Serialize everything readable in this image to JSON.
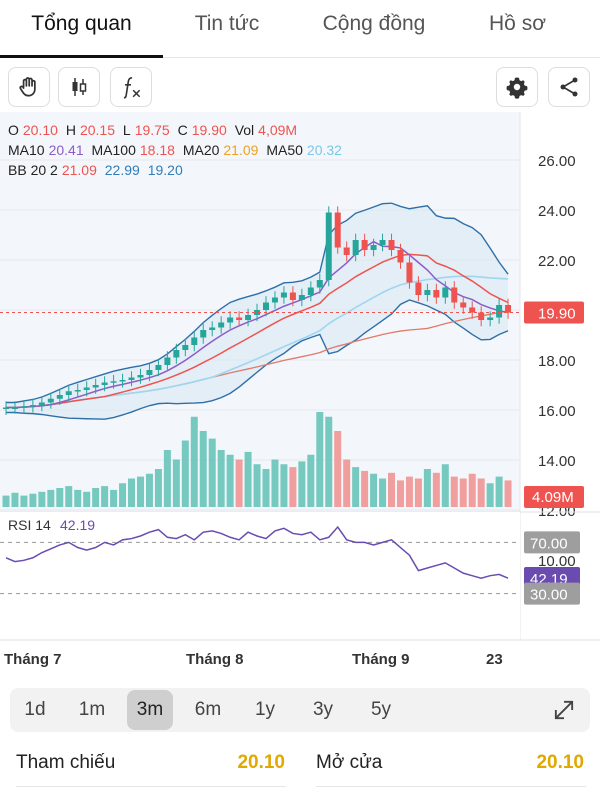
{
  "tabs": [
    "Tổng quan",
    "Tin tức",
    "Cộng đồng",
    "Hồ sơ"
  ],
  "legend": {
    "ohlc": {
      "o_label": "O",
      "o": "20.10",
      "h_label": "H",
      "h": "20.15",
      "l_label": "L",
      "l": "19.75",
      "c_label": "C",
      "c": "19.90",
      "vol_label": "Vol",
      "vol": "4,09M"
    },
    "ma": {
      "ma10_label": "MA10",
      "ma10": "20.41",
      "ma100_label": "MA100",
      "ma100": "18.18",
      "ma20_label": "MA20",
      "ma20": "21.09",
      "ma50_label": "MA50",
      "ma50": "20.32"
    },
    "bb": {
      "label": "BB 20 2",
      "mid": "21.09",
      "upper": "22.99",
      "lower": "19.20"
    }
  },
  "price_axis": [
    "26.00",
    "24.00",
    "22.00",
    "20.00",
    "18.00",
    "16.00",
    "14.00",
    "12.00",
    "10.00"
  ],
  "price_badge": "19.90",
  "volume_badge": "4.09M",
  "rsi": {
    "label": "RSI 14",
    "value": "42.19",
    "level_upper": "70.00",
    "level_lower": "30.00"
  },
  "x_axis": [
    "Tháng 7",
    "Tháng 8",
    "Tháng 9",
    "23"
  ],
  "periods": [
    "1d",
    "1m",
    "3m",
    "6m",
    "1y",
    "3y",
    "5y"
  ],
  "active_period": "3m",
  "stats": {
    "ref_label": "Tham chiếu",
    "ref_value": "20.10",
    "open_label": "Mở cửa",
    "open_value": "20.10"
  },
  "colors": {
    "up": "#26a69a",
    "down": "#ef5350",
    "ref": "#e0a800"
  },
  "chart_data": {
    "type": "candlestick",
    "price_range": [
      10,
      27
    ],
    "closes": [
      16.1,
      16.1,
      16.15,
      16.2,
      16.3,
      16.45,
      16.6,
      16.75,
      16.8,
      16.9,
      17.0,
      17.1,
      17.15,
      17.2,
      17.3,
      17.4,
      17.6,
      17.8,
      18.1,
      18.4,
      18.6,
      18.9,
      19.2,
      19.3,
      19.5,
      19.7,
      19.6,
      19.8,
      20.0,
      20.3,
      20.5,
      20.7,
      20.4,
      20.6,
      20.9,
      21.2,
      23.9,
      22.5,
      22.2,
      22.8,
      22.4,
      22.6,
      22.8,
      22.4,
      21.9,
      21.1,
      20.6,
      20.8,
      20.5,
      20.9,
      20.3,
      20.1,
      19.9,
      19.6,
      19.7,
      20.2,
      19.9
    ],
    "volumes_rel": [
      0.12,
      0.15,
      0.12,
      0.14,
      0.16,
      0.18,
      0.2,
      0.22,
      0.18,
      0.16,
      0.2,
      0.22,
      0.18,
      0.25,
      0.3,
      0.32,
      0.35,
      0.4,
      0.6,
      0.5,
      0.7,
      0.95,
      0.8,
      0.72,
      0.6,
      0.55,
      0.5,
      0.58,
      0.45,
      0.4,
      0.5,
      0.45,
      0.42,
      0.48,
      0.55,
      1.0,
      0.95,
      0.8,
      0.5,
      0.42,
      0.38,
      0.35,
      0.3,
      0.36,
      0.28,
      0.32,
      0.3,
      0.4,
      0.36,
      0.45,
      0.32,
      0.3,
      0.35,
      0.3,
      0.25,
      0.32,
      0.28
    ],
    "rsi": [
      58,
      55,
      56,
      58,
      62,
      65,
      68,
      70,
      66,
      64,
      66,
      70,
      68,
      72,
      73,
      75,
      78,
      80,
      74,
      73,
      76,
      72,
      78,
      79,
      77,
      74,
      72,
      78,
      75,
      73,
      79,
      81,
      77,
      76,
      78,
      72,
      74,
      82,
      72,
      70,
      70,
      68,
      70,
      72,
      66,
      60,
      48,
      50,
      52,
      54,
      50,
      46,
      44,
      42,
      44,
      45,
      42
    ]
  }
}
